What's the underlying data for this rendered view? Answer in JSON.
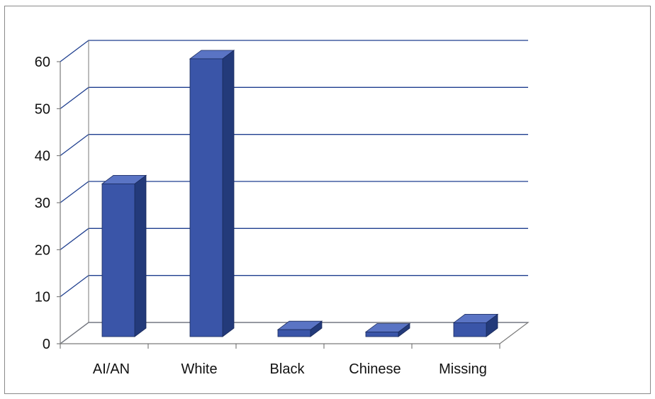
{
  "chart_data": {
    "type": "bar",
    "style": "3d-column",
    "categories": [
      "AI/AN",
      "White",
      "Black",
      "Chinese",
      "Missing"
    ],
    "values": [
      33,
      60,
      1.5,
      1,
      3
    ],
    "title": "",
    "xlabel": "",
    "ylabel": "",
    "ylim": [
      0,
      60
    ],
    "yticks": [
      0,
      10,
      20,
      30,
      40,
      50,
      60
    ],
    "grid": true,
    "legend": "none",
    "colors": {
      "bar_front": "#3a55a8",
      "bar_side": "#233a7a",
      "bar_top": "#5a74c4",
      "gridline": "#1f3f8f"
    }
  }
}
